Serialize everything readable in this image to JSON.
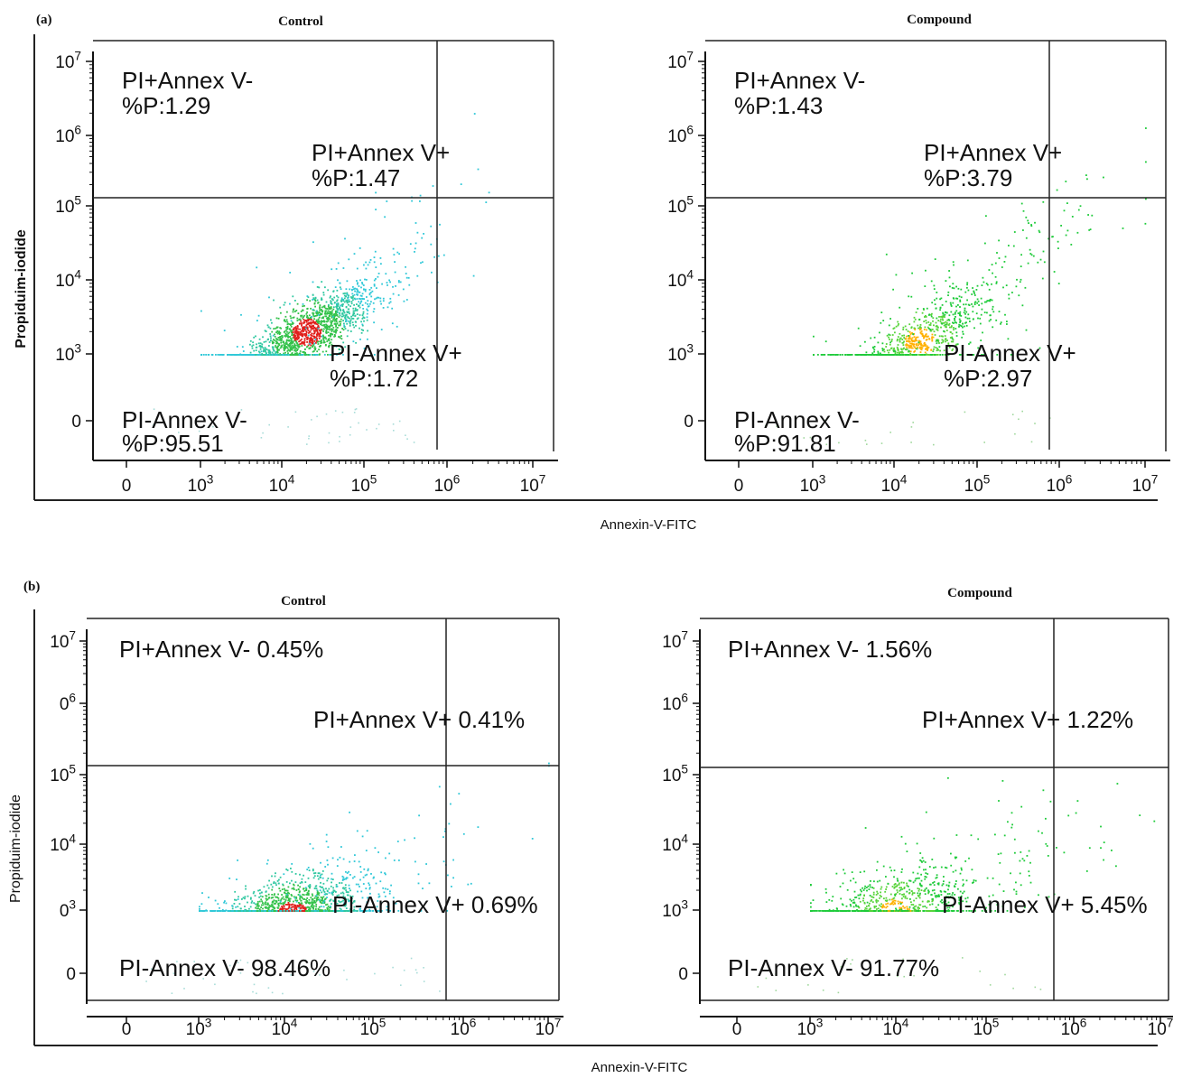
{
  "figure": {
    "panel_labels": [
      "(a)",
      "(b)"
    ],
    "panels": [
      {
        "label": "(a)",
        "ylabel": "Propiduim-iodide",
        "xlabel": "Annexin-V-FITC",
        "plots": [
          {
            "title": "Control",
            "color_scheme": "cyan-green-red"
          },
          {
            "title": "Compound",
            "color_scheme": "green-yellow"
          }
        ]
      },
      {
        "label": "(b)",
        "ylabel": "Propiduim-iodide",
        "xlabel": "Annexin-V-FITC",
        "plots": [
          {
            "title": "Control",
            "color_scheme": "cyan-green-red"
          },
          {
            "title": "Compound",
            "color_scheme": "green-yellow"
          }
        ]
      }
    ]
  },
  "chart_data": [
    {
      "type": "scatter",
      "panel": "(a)",
      "title": "Control",
      "xlabel": "Annexin-V-FITC",
      "ylabel": "Propiduim-iodide",
      "x_scale": "log",
      "y_scale": "log",
      "x_ticks": [
        "0",
        "10^3",
        "10^4",
        "10^5",
        "10^6",
        "10^7"
      ],
      "y_ticks": [
        "0",
        "10^3",
        "10^4",
        "10^5",
        "10^6",
        "10^7"
      ],
      "gate_x": 500000,
      "gate_y": 100000,
      "cluster_center": [
        20000,
        2000
      ],
      "quadrants": [
        {
          "name": "PI+Annex V-",
          "text": "%P:1.29",
          "value": 1.29
        },
        {
          "name": "PI+Annex V+",
          "text": "%P:1.47",
          "value": 1.47
        },
        {
          "name": "PI-Annex V+",
          "text": "%P:1.72",
          "value": 1.72
        },
        {
          "name": "PI-Annex V-",
          "text": "%P:95.51",
          "value": 95.51
        }
      ]
    },
    {
      "type": "scatter",
      "panel": "(a)",
      "title": "Compound",
      "xlabel": "Annexin-V-FITC",
      "ylabel": "Propiduim-iodide",
      "x_scale": "log",
      "y_scale": "log",
      "x_ticks": [
        "0",
        "10^3",
        "10^4",
        "10^5",
        "10^6",
        "10^7"
      ],
      "y_ticks": [
        "0",
        "10^3",
        "10^4",
        "10^5",
        "10^6",
        "10^7"
      ],
      "gate_x": 500000,
      "gate_y": 100000,
      "cluster_center": [
        20000,
        1500
      ],
      "quadrants": [
        {
          "name": "PI+Annex V-",
          "text": "%P:1.43",
          "value": 1.43
        },
        {
          "name": "PI+Annex V+",
          "text": "%P:3.79",
          "value": 3.79
        },
        {
          "name": "PI-Annex V+",
          "text": "%P:2.97",
          "value": 2.97
        },
        {
          "name": "PI-Annex V-",
          "text": "%P:91.81",
          "value": 91.81
        }
      ]
    },
    {
      "type": "scatter",
      "panel": "(b)",
      "title": "Control",
      "xlabel": "Annexin-V-FITC",
      "ylabel": "Propiduim-iodide",
      "x_scale": "log",
      "y_scale": "log",
      "x_ticks": [
        "0",
        "10^3",
        "10^4",
        "10^5",
        "10^6",
        "10^7"
      ],
      "y_ticks": [
        "0",
        "0^3",
        "10^4",
        "10^5",
        "0^6",
        "10^7"
      ],
      "gate_x": 500000,
      "gate_y": 100000,
      "cluster_center": [
        12000,
        900
      ],
      "quadrants": [
        {
          "name": "PI+Annex V-",
          "text": "PI+Annex V- 0.45%",
          "value": 0.45
        },
        {
          "name": "PI+Annex V+",
          "text": "PI+Annex V+ 0.41%",
          "value": 0.41
        },
        {
          "name": "PI-Annex V+",
          "text": "PI-Annex V+ 0.69%",
          "value": 0.69
        },
        {
          "name": "PI-Annex V-",
          "text": "PI-Annex V- 98.46%",
          "value": 98.46
        }
      ]
    },
    {
      "type": "scatter",
      "panel": "(b)",
      "title": "Compound",
      "xlabel": "Annexin-V-FITC",
      "ylabel": "Propiduim-iodide",
      "x_scale": "log",
      "y_scale": "log",
      "x_ticks": [
        "0",
        "10^3",
        "10^4",
        "10^5",
        "10^6",
        "10^7"
      ],
      "y_ticks": [
        "0",
        "10^3",
        "10^4",
        "10^5",
        "10^6",
        "10^7"
      ],
      "gate_x": 500000,
      "gate_y": 100000,
      "cluster_center": [
        10000,
        1000
      ],
      "quadrants": [
        {
          "name": "PI+Annex V-",
          "text": "PI+Annex V- 1.56%",
          "value": 1.56
        },
        {
          "name": "PI+Annex V+",
          "text": "PI+Annex V+ 1.22%",
          "value": 1.22
        },
        {
          "name": "PI-Annex V+",
          "text": "PI-Annex V+ 5.45%",
          "value": 5.45
        },
        {
          "name": "PI-Annex V-",
          "text": "PI-Annex V- 91.77%",
          "value": 91.77
        }
      ]
    }
  ]
}
